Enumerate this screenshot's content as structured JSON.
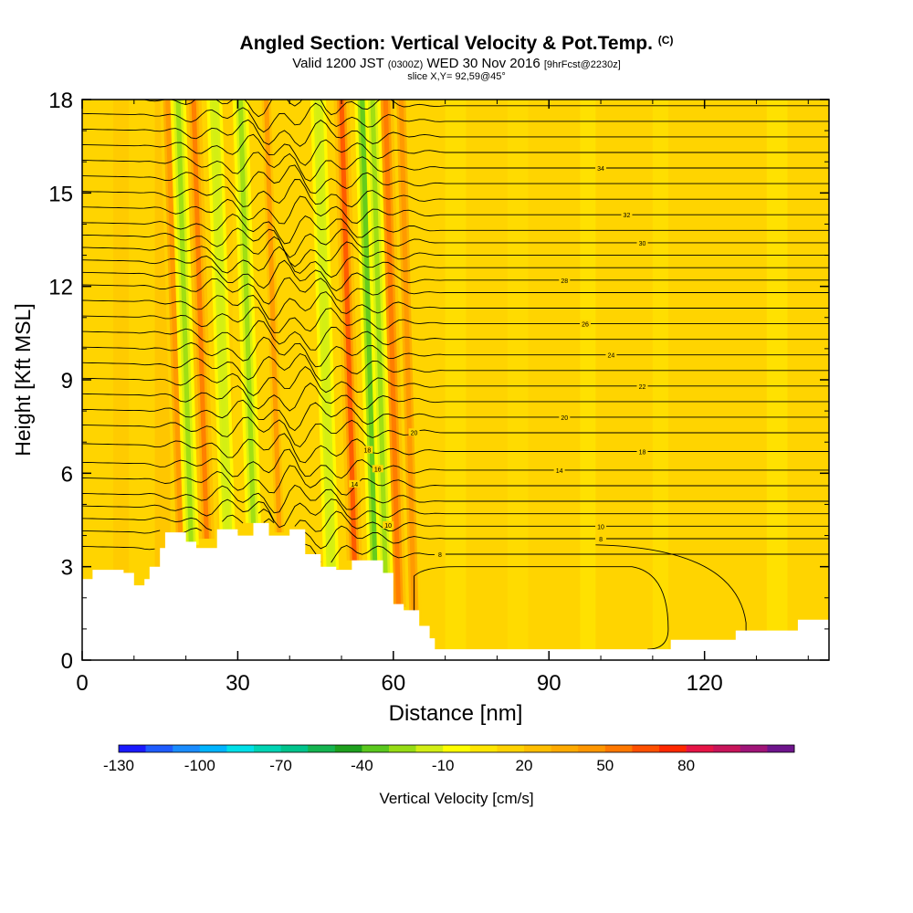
{
  "title": {
    "main": "Angled Section: Vertical Velocity & Pot.Temp.",
    "main_suffix": "(C)",
    "line2_a": "Valid 1200 JST",
    "line2_b": "(0300Z)",
    "line2_c": "WED 30 Nov 2016",
    "line2_d": "[9hrFcst@2230z]",
    "line3": "slice X,Y= 92,59@45°"
  },
  "chart_data": {
    "type": "heatmap",
    "xlabel": "Distance [nm]",
    "ylabel": "Height [Kft MSL]",
    "xlim": [
      0,
      144
    ],
    "ylim": [
      0,
      18
    ],
    "x_ticks": [
      0,
      30,
      60,
      90,
      120
    ],
    "y_ticks": [
      0,
      3,
      6,
      9,
      12,
      15,
      18
    ],
    "x_tick_labels": [
      "0",
      "30",
      "60",
      "90",
      "120"
    ],
    "y_tick_labels": [
      "0",
      "3",
      "6",
      "9",
      "12",
      "15",
      "18"
    ],
    "background_color": "#ffd400",
    "updraft_columns": [
      {
        "x": 19,
        "max_w": 40
      },
      {
        "x": 24,
        "max_w": 45
      },
      {
        "x": 38,
        "max_w": 35
      },
      {
        "x": 52.5,
        "max_w": 55
      },
      {
        "x": 61,
        "max_w": 50
      },
      {
        "x": 64,
        "max_w": 40
      }
    ],
    "downdraft_columns": [
      {
        "x": 21,
        "min_w": -30
      },
      {
        "x": 28,
        "min_w": -25
      },
      {
        "x": 33,
        "min_w": -30
      },
      {
        "x": 48,
        "min_w": -25
      },
      {
        "x": 56.5,
        "min_w": -40
      },
      {
        "x": 58.5,
        "min_w": -30
      }
    ],
    "terrain_height": {
      "x": [
        0,
        2,
        8,
        10,
        12,
        13,
        15,
        16,
        20,
        22,
        26,
        30,
        33,
        36,
        40,
        43,
        46,
        49,
        52,
        55,
        58,
        60,
        62,
        65,
        67,
        68,
        70,
        80,
        90,
        100,
        113,
        113.5,
        125,
        126,
        138,
        144
      ],
      "h": [
        2.6,
        2.9,
        2.8,
        2.4,
        2.6,
        3.0,
        3.6,
        4.1,
        3.8,
        3.6,
        4.2,
        4.0,
        4.4,
        4.0,
        4.2,
        3.4,
        3.0,
        2.9,
        3.2,
        3.2,
        2.8,
        1.8,
        1.6,
        1.1,
        0.7,
        0.35,
        0.35,
        0.35,
        0.35,
        0.35,
        0.35,
        0.65,
        0.65,
        0.95,
        1.3,
        1.3
      ]
    },
    "isentropes": {
      "levels_kft": [
        3.4,
        3.9,
        4.3,
        4.7,
        5.1,
        5.6,
        6.1,
        6.7,
        7.3,
        7.8,
        8.3,
        8.8,
        9.3,
        9.8,
        10.3,
        10.8,
        11.3,
        11.8,
        12.2,
        12.6,
        13.0,
        13.4,
        13.8,
        14.3,
        14.8,
        15.3,
        15.8,
        16.3,
        16.8,
        17.3,
        17.8
      ],
      "labels": [
        {
          "text": "8",
          "x": 69,
          "level": 0
        },
        {
          "text": "8",
          "x": 100,
          "level": 1
        },
        {
          "text": "10",
          "x": 100,
          "level": 2
        },
        {
          "text": "10",
          "x": 59,
          "level": 2
        },
        {
          "text": "14",
          "x": 52.5,
          "level": 5
        },
        {
          "text": "14",
          "x": 92,
          "level": 6
        },
        {
          "text": "16",
          "x": 57,
          "level": 6
        },
        {
          "text": "18",
          "x": 55,
          "level": 7
        },
        {
          "text": "18",
          "x": 108,
          "level": 7
        },
        {
          "text": "20",
          "x": 64,
          "level": 8
        },
        {
          "text": "20",
          "x": 93,
          "level": 9
        },
        {
          "text": "22",
          "x": 108,
          "level": 11
        },
        {
          "text": "24",
          "x": 102,
          "level": 13
        },
        {
          "text": "26",
          "x": 97,
          "level": 15
        },
        {
          "text": "28",
          "x": 93,
          "level": 18
        },
        {
          "text": "30",
          "x": 108,
          "level": 21
        },
        {
          "text": "32",
          "x": 105,
          "level": 23
        },
        {
          "text": "34",
          "x": 100,
          "level": 26
        }
      ]
    },
    "low_level_closed_contour": {
      "x0": 64,
      "x1": 128,
      "h_top": 3.0
    }
  },
  "colorbar": {
    "title": "Vertical Velocity [cm/s]",
    "tick_labels": [
      "-130",
      "-100",
      "-70",
      "-40",
      "-10",
      "20",
      "50",
      "80"
    ],
    "colors": [
      "#1a1aff",
      "#1f5cff",
      "#1a8cff",
      "#00b4ff",
      "#00e0e8",
      "#00d4b4",
      "#00c48c",
      "#14b450",
      "#1ea01e",
      "#5ac81e",
      "#96dc14",
      "#d2ee14",
      "#ffff00",
      "#ffe600",
      "#ffd200",
      "#ffbe00",
      "#ffaa00",
      "#ff9600",
      "#ff7800",
      "#ff5000",
      "#ff2800",
      "#e61446",
      "#c8145a",
      "#a01478",
      "#6e148c"
    ]
  }
}
